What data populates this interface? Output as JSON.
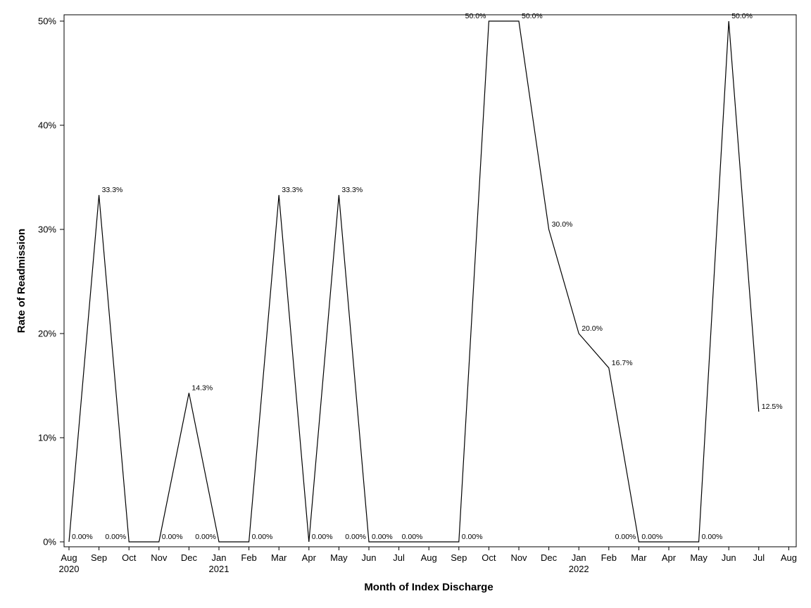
{
  "chart_data": {
    "type": "line",
    "title": "",
    "xlabel": "Month of Index Discharge",
    "ylabel": "Rate of Readmission",
    "ylim": [
      0,
      50
    ],
    "grid": false,
    "y_ticks": [
      "0%",
      "10%",
      "20%",
      "30%",
      "40%",
      "50%"
    ],
    "x_ticks": [
      {
        "month": "Aug",
        "year": "2020"
      },
      {
        "month": "Sep",
        "year": ""
      },
      {
        "month": "Oct",
        "year": ""
      },
      {
        "month": "Nov",
        "year": ""
      },
      {
        "month": "Dec",
        "year": ""
      },
      {
        "month": "Jan",
        "year": "2021"
      },
      {
        "month": "Feb",
        "year": ""
      },
      {
        "month": "Mar",
        "year": ""
      },
      {
        "month": "Apr",
        "year": ""
      },
      {
        "month": "May",
        "year": ""
      },
      {
        "month": "Jun",
        "year": ""
      },
      {
        "month": "Jul",
        "year": ""
      },
      {
        "month": "Aug",
        "year": ""
      },
      {
        "month": "Sep",
        "year": ""
      },
      {
        "month": "Oct",
        "year": ""
      },
      {
        "month": "Nov",
        "year": ""
      },
      {
        "month": "Dec",
        "year": ""
      },
      {
        "month": "Jan",
        "year": "2022"
      },
      {
        "month": "Feb",
        "year": ""
      },
      {
        "month": "Mar",
        "year": ""
      },
      {
        "month": "Apr",
        "year": ""
      },
      {
        "month": "May",
        "year": ""
      },
      {
        "month": "Jun",
        "year": ""
      },
      {
        "month": "Jul",
        "year": ""
      },
      {
        "month": "Aug",
        "year": ""
      }
    ],
    "points": [
      {
        "x": "2020-08",
        "y": 0.0,
        "label": "0.00%",
        "label_side": "right"
      },
      {
        "x": "2020-09",
        "y": 33.3,
        "label": "33.3%",
        "label_side": "right"
      },
      {
        "x": "2020-10",
        "y": 0.0,
        "label": "0.00%",
        "label_side": "left"
      },
      {
        "x": "2020-11",
        "y": 0.0,
        "label": "0.00%",
        "label_side": "right"
      },
      {
        "x": "2020-12",
        "y": 14.3,
        "label": "14.3%",
        "label_side": "right"
      },
      {
        "x": "2021-01",
        "y": 0.0,
        "label": "0.00%",
        "label_side": "left"
      },
      {
        "x": "2021-02",
        "y": 0.0,
        "label": "0.00%",
        "label_side": "right"
      },
      {
        "x": "2021-03",
        "y": 33.3,
        "label": "33.3%",
        "label_side": "right"
      },
      {
        "x": "2021-04",
        "y": 0.0,
        "label": "0.00%",
        "label_side": "right"
      },
      {
        "x": "2021-05",
        "y": 33.3,
        "label": "33.3%",
        "label_side": "right"
      },
      {
        "x": "2021-06",
        "y": 0.0,
        "label": "0.00%",
        "label_side": "left"
      },
      {
        "x": "2021-06",
        "y": 0.0,
        "label": "0.00%",
        "label_side": "right"
      },
      {
        "x": "2021-07",
        "y": 0.0,
        "label": "0.00%",
        "label_side": "right"
      },
      {
        "x": "2021-09",
        "y": 0.0,
        "label": "0.00%",
        "label_side": "right"
      },
      {
        "x": "2021-10",
        "y": 50.0,
        "label": "50.0%",
        "label_side": "left"
      },
      {
        "x": "2021-11",
        "y": 50.0,
        "label": "50.0%",
        "label_side": "right"
      },
      {
        "x": "2021-12",
        "y": 30.0,
        "label": "30.0%",
        "label_side": "right"
      },
      {
        "x": "2022-01",
        "y": 20.0,
        "label": "20.0%",
        "label_side": "right"
      },
      {
        "x": "2022-02",
        "y": 16.7,
        "label": "16.7%",
        "label_side": "right"
      },
      {
        "x": "2022-03",
        "y": 0.0,
        "label": "0.00%",
        "label_side": "left"
      },
      {
        "x": "2022-03",
        "y": 0.0,
        "label": "0.00%",
        "label_side": "right"
      },
      {
        "x": "2022-05",
        "y": 0.0,
        "label": "0.00%",
        "label_side": "right"
      },
      {
        "x": "2022-06",
        "y": 50.0,
        "label": "50.0%",
        "label_side": "right"
      },
      {
        "x": "2022-07",
        "y": 12.5,
        "label": "12.5%",
        "label_side": "right"
      }
    ]
  }
}
